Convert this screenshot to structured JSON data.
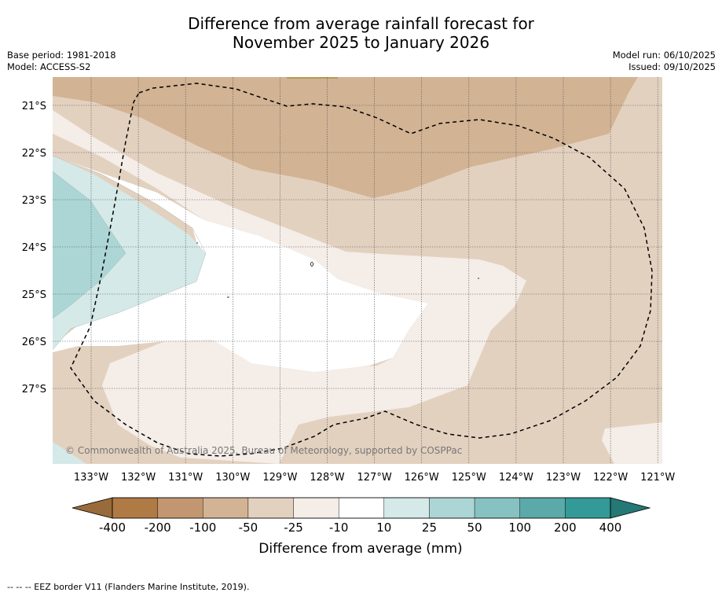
{
  "title_line1": "Difference from average rainfall forecast for",
  "title_line2": "November 2025 to January 2026",
  "base_period": "Base period: 1981-2018",
  "model": "Model: ACCESS-S2",
  "model_run": "Model run: 06/10/2025",
  "issued": "Issued: 09/10/2025",
  "copyright": "© Commonwealth of Australia 2025, Bureau of Meteorology, supported by COSPPac",
  "footer_legend": "--  --  -- EEZ border V11 (Flanders Marine Institute, 2019).",
  "map": {
    "lat_labels": [
      "21°S",
      "22°S",
      "23°S",
      "24°S",
      "25°S",
      "26°S",
      "27°S"
    ],
    "lon_labels": [
      "133°W",
      "132°W",
      "131°W",
      "130°W",
      "129°W",
      "128°W",
      "127°W",
      "126°W",
      "125°W",
      "124°W",
      "123°W",
      "122°W",
      "121°W"
    ]
  },
  "colorbar": {
    "title": "Difference from average (mm)",
    "tick_labels": [
      "-400",
      "-200",
      "-100",
      "-50",
      "-25",
      "-10",
      "10",
      "25",
      "50",
      "100",
      "200",
      "400"
    ],
    "colors": [
      "#9a6b3a",
      "#b07a45",
      "#c29670",
      "#d2b394",
      "#e3d1bf",
      "#f4ede8",
      "#ffffff",
      "#d4e9e8",
      "#acd6d5",
      "#86c2c1",
      "#5ca9a9",
      "#339a97",
      "#247875"
    ]
  }
}
